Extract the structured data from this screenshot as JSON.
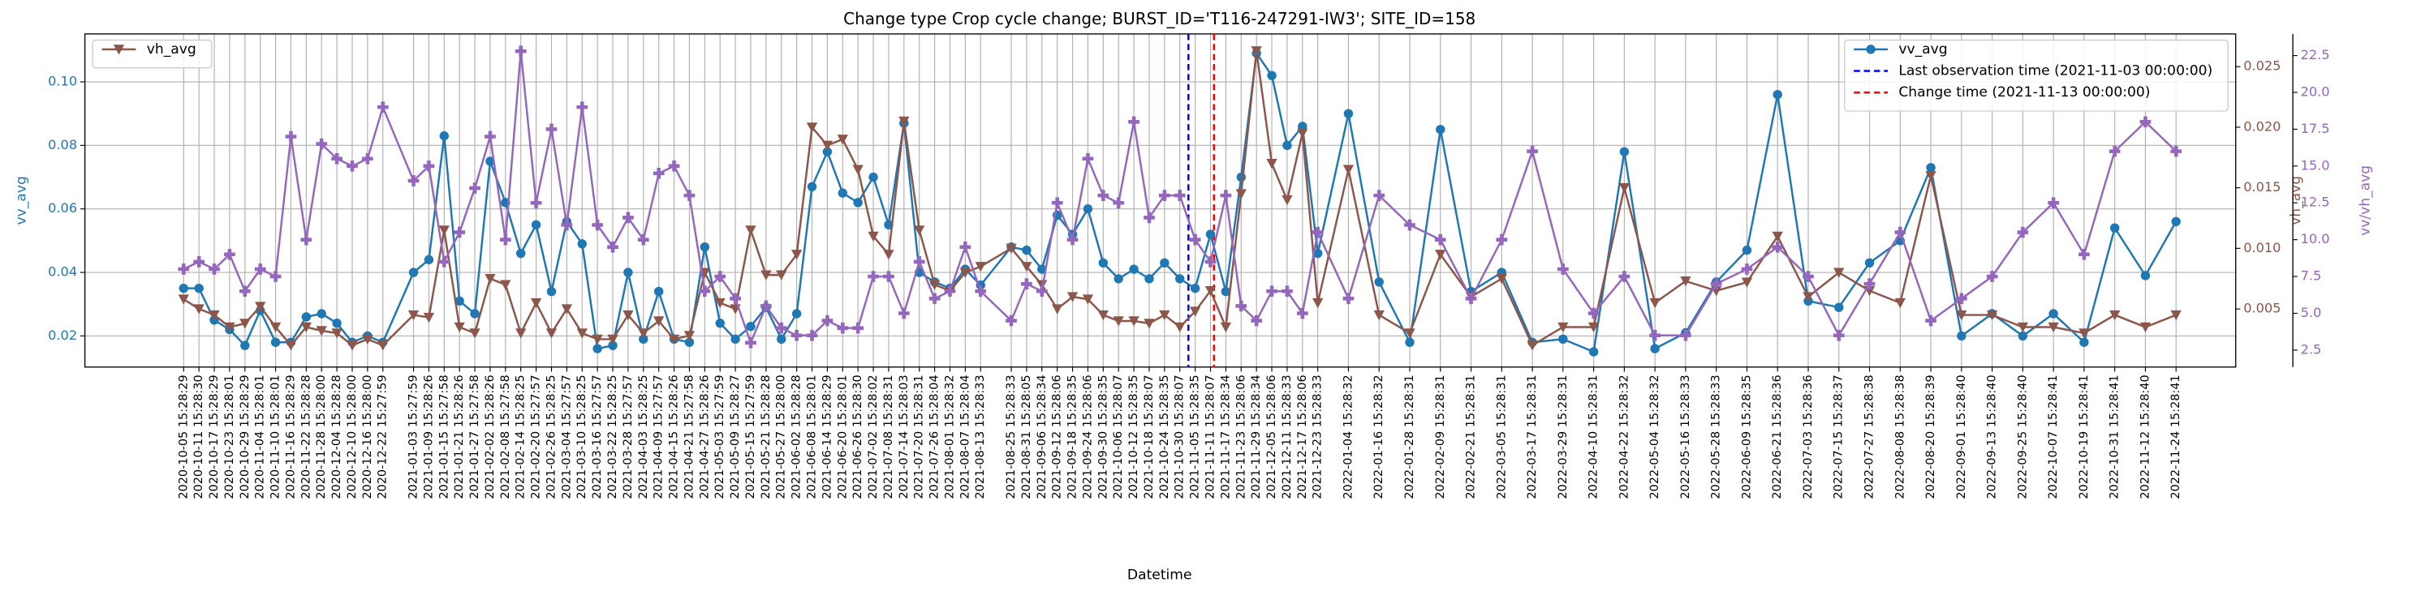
{
  "chart_data": {
    "type": "line",
    "title": "Change type Crop cycle change; BURST_ID='T116-247291-IW3'; SITE_ID=158",
    "xlabel": "Datetime",
    "ylabel": "vv_avg",
    "y2label": "vh_avg",
    "y3label": "vv/vh_avg",
    "grid": true,
    "xlim": [
      "2020-08-28",
      "2022-12-18"
    ],
    "ylim": [
      0.0102,
      0.1151
    ],
    "yticks": [
      0.02,
      0.04,
      0.06,
      0.08,
      {
        "value": 0.1,
        "label": "0.10"
      }
    ],
    "y2lim": [
      0.0002,
      0.0277
    ],
    "y2ticks": [
      0.005,
      {
        "value": 0.01,
        "label": "0.010"
      },
      0.015,
      {
        "value": 0.02,
        "label": "0.020"
      },
      0.025
    ],
    "y3lim": [
      1.35,
      23.97
    ],
    "y3ticks": [
      2.5,
      {
        "value": 5,
        "label": "5.0"
      },
      7.5,
      {
        "value": 10,
        "label": "10.0"
      },
      12.5,
      {
        "value": 15,
        "label": "15.0"
      },
      17.5,
      {
        "value": 20,
        "label": "20.0"
      },
      22.5
    ],
    "x": [
      "2020-10-05 15:28:29",
      "2020-10-11 15:28:30",
      "2020-10-17 15:28:29",
      "2020-10-23 15:28:01",
      "2020-10-29 15:28:29",
      "2020-11-04 15:28:01",
      "2020-11-10 15:28:01",
      "2020-11-16 15:28:29",
      "2020-11-22 15:28:28",
      "2020-11-28 15:28:00",
      "2020-12-04 15:28:28",
      "2020-12-10 15:28:00",
      "2020-12-16 15:28:00",
      "2020-12-22 15:27:59",
      "2021-01-03 15:27:59",
      "2021-01-09 15:28:26",
      "2021-01-15 15:27:58",
      "2021-01-21 15:28:26",
      "2021-01-27 15:27:58",
      "2021-02-02 15:28:26",
      "2021-02-08 15:27:58",
      "2021-02-14 15:28:25",
      "2021-02-20 15:27:57",
      "2021-02-26 15:28:25",
      "2021-03-04 15:27:57",
      "2021-03-10 15:28:25",
      "2021-03-16 15:27:57",
      "2021-03-22 15:28:25",
      "2021-03-28 15:27:57",
      "2021-04-03 15:28:25",
      "2021-04-09 15:27:57",
      "2021-04-15 15:28:26",
      "2021-04-21 15:27:58",
      "2021-04-27 15:28:26",
      "2021-05-03 15:27:59",
      "2021-05-09 15:28:27",
      "2021-05-15 15:27:59",
      "2021-05-21 15:28:28",
      "2021-05-27 15:28:00",
      "2021-06-02 15:28:28",
      "2021-06-08 15:28:01",
      "2021-06-14 15:28:29",
      "2021-06-20 15:28:01",
      "2021-06-26 15:28:30",
      "2021-07-02 15:28:02",
      "2021-07-08 15:28:31",
      "2021-07-14 15:28:03",
      "2021-07-20 15:28:31",
      "2021-07-26 15:28:04",
      "2021-08-01 15:28:32",
      "2021-08-07 15:28:04",
      "2021-08-13 15:28:33",
      "2021-08-25 15:28:33",
      "2021-08-31 15:28:05",
      "2021-09-06 15:28:34",
      "2021-09-12 15:28:06",
      "2021-09-18 15:28:35",
      "2021-09-24 15:28:06",
      "2021-09-30 15:28:35",
      "2021-10-06 15:28:07",
      "2021-10-12 15:28:35",
      "2021-10-18 15:28:07",
      "2021-10-24 15:28:35",
      "2021-10-30 15:28:07",
      "2021-11-05 15:28:35",
      "2021-11-11 15:28:07",
      "2021-11-17 15:28:34",
      "2021-11-23 15:28:06",
      "2021-11-29 15:28:34",
      "2021-12-05 15:28:06",
      "2021-12-11 15:28:33",
      "2021-12-17 15:28:06",
      "2021-12-23 15:28:33",
      "2022-01-04 15:28:32",
      "2022-01-16 15:28:32",
      "2022-01-28 15:28:31",
      "2022-02-09 15:28:31",
      "2022-02-21 15:28:31",
      "2022-03-05 15:28:31",
      "2022-03-17 15:28:31",
      "2022-03-29 15:28:31",
      "2022-04-10 15:28:31",
      "2022-04-22 15:28:32",
      "2022-05-04 15:28:32",
      "2022-05-16 15:28:33",
      "2022-05-28 15:28:33",
      "2022-06-09 15:28:35",
      "2022-06-21 15:28:36",
      "2022-07-03 15:28:36",
      "2022-07-15 15:28:37",
      "2022-07-27 15:28:38",
      "2022-08-08 15:28:38",
      "2022-08-20 15:28:39",
      "2022-09-01 15:28:40",
      "2022-09-13 15:28:40",
      "2022-09-25 15:28:40",
      "2022-10-07 15:28:41",
      "2022-10-19 15:28:41",
      "2022-10-31 15:28:41",
      "2022-11-12 15:28:40",
      "2022-11-24 15:28:41"
    ],
    "series": [
      {
        "name": "vv_avg",
        "color": "#1f77b4",
        "marker": "o",
        "axis": "y",
        "legend": "upper right",
        "values": [
          0.035,
          0.035,
          0.025,
          0.022,
          0.017,
          0.028,
          0.018,
          0.018,
          0.026,
          0.027,
          0.024,
          0.018,
          0.02,
          0.018,
          0.04,
          0.044,
          0.083,
          0.031,
          0.027,
          0.075,
          0.062,
          0.046,
          0.055,
          0.034,
          0.056,
          0.049,
          0.016,
          0.017,
          0.04,
          0.019,
          0.034,
          0.019,
          0.018,
          0.048,
          0.024,
          0.019,
          0.023,
          0.029,
          0.019,
          0.027,
          0.067,
          0.078,
          0.065,
          0.062,
          0.07,
          0.055,
          0.087,
          0.04,
          0.037,
          0.035,
          0.041,
          0.036,
          0.048,
          0.047,
          0.041,
          0.058,
          0.052,
          0.06,
          0.043,
          0.038,
          0.041,
          0.038,
          0.043,
          0.038,
          0.035,
          0.052,
          0.034,
          0.07,
          0.109,
          0.102,
          0.08,
          0.086,
          0.046,
          0.09,
          0.037,
          0.018,
          0.085,
          0.034,
          0.04,
          0.018,
          0.019,
          0.015,
          0.078,
          0.016,
          0.021,
          0.037,
          0.047,
          0.096,
          0.031,
          0.029,
          0.043,
          0.05,
          0.073,
          0.02,
          0.027,
          0.02,
          0.027,
          0.018,
          0.054,
          0.039,
          0.056
        ]
      },
      {
        "name": "vh_avg",
        "color": "#8c564b",
        "marker": "v",
        "axis": "y2",
        "legend": "upper left",
        "values": [
          0.0058,
          0.005,
          0.0045,
          0.0035,
          0.0038,
          0.0052,
          0.0035,
          0.002,
          0.0035,
          0.0032,
          0.003,
          0.002,
          0.0025,
          0.002,
          0.0045,
          0.0043,
          0.0115,
          0.0035,
          0.003,
          0.0075,
          0.007,
          0.003,
          0.0055,
          0.003,
          0.005,
          0.003,
          0.0025,
          0.0025,
          0.0045,
          0.003,
          0.004,
          0.0025,
          0.0028,
          0.008,
          0.0055,
          0.005,
          0.0115,
          0.0078,
          0.0078,
          0.0095,
          0.02,
          0.0185,
          0.019,
          0.0165,
          0.011,
          0.0095,
          0.0205,
          0.0115,
          0.007,
          0.0065,
          0.008,
          0.0085,
          0.01,
          0.0085,
          0.007,
          0.005,
          0.006,
          0.0058,
          0.0045,
          0.004,
          0.004,
          0.0038,
          0.0045,
          0.0035,
          0.0048,
          0.0065,
          0.0035,
          0.0145,
          0.0263,
          0.017,
          0.014,
          0.0195,
          0.0055,
          0.0165,
          0.0045,
          0.003,
          0.0095,
          0.006,
          0.0075,
          0.002,
          0.0035,
          0.0035,
          0.015,
          0.0055,
          0.0073,
          0.0065,
          0.0072,
          0.011,
          0.006,
          0.008,
          0.0065,
          0.0055,
          0.016,
          0.0045,
          0.0045,
          0.0035,
          0.0035,
          0.003,
          0.0045,
          0.0035,
          0.0045
        ]
      },
      {
        "name": "vv/vh_avg",
        "color": "#9467bd",
        "marker": "P",
        "axis": "y3",
        "values": [
          8,
          8.5,
          8,
          9,
          6.5,
          8,
          7.5,
          17,
          10,
          16.5,
          15.5,
          15,
          15.5,
          19,
          14,
          15,
          8.5,
          10.5,
          13.5,
          17,
          10,
          22.8,
          12.5,
          17.5,
          11,
          19,
          11,
          9.5,
          11.5,
          10,
          14.5,
          15,
          13,
          6.5,
          7.5,
          6,
          3,
          5.5,
          4,
          3.5,
          3.5,
          4.5,
          4,
          4,
          7.5,
          7.5,
          5,
          8.5,
          6,
          6.5,
          9.5,
          6.5,
          4.5,
          7,
          6.5,
          12.5,
          10,
          15.5,
          13,
          12.5,
          18,
          11.5,
          13,
          13,
          10,
          8.5,
          13,
          5.5,
          4.5,
          6.5,
          6.5,
          5,
          10.5,
          6,
          13,
          11,
          10,
          6,
          10,
          16,
          8,
          5,
          7.5,
          3.5,
          3.5,
          7,
          8,
          9.5,
          7.5,
          3.5,
          7,
          10.5,
          4.5,
          6,
          7.5,
          10.5,
          12.5,
          9,
          16,
          18,
          16
        ]
      }
    ],
    "vlines": [
      {
        "x": "2021-11-03 00:00:00",
        "label": "Last observation time (2021-11-03 00:00:00)",
        "color": "#0000ff",
        "legend": "upper right"
      },
      {
        "x": "2021-11-13 00:00:00",
        "label": "Change time (2021-11-13 00:00:00)",
        "color": "#ff0000",
        "legend": "upper right"
      }
    ]
  }
}
